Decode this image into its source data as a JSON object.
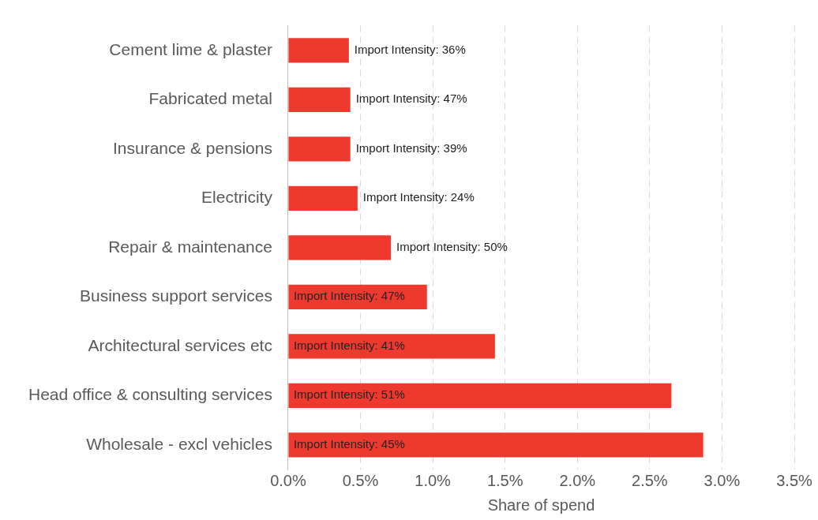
{
  "chart_data": {
    "type": "bar",
    "orientation": "horizontal",
    "xlabel": "Share of spend",
    "categories": [
      "Cement lime & plaster",
      "Fabricated metal",
      "Insurance & pensions",
      "Electricity",
      "Repair & maintenance",
      "Business support services",
      "Architectural services etc",
      "Head office & consulting services",
      "Wholesale - excl vehicles"
    ],
    "values": [
      0.42,
      0.43,
      0.43,
      0.48,
      0.71,
      0.96,
      1.43,
      2.65,
      2.87
    ],
    "annotations": [
      {
        "text": "Import Intensity: 36%",
        "x": 0.42,
        "y": "Cement lime & plaster"
      },
      {
        "text": "Import Intensity: 47%",
        "x": 0.43,
        "y": "Fabricated metal"
      },
      {
        "text": "Import Intensity: 39%",
        "x": 0.43,
        "y": "Insurance & pensions"
      },
      {
        "text": "Import Intensity: 24%",
        "x": 0.48,
        "y": "Electricity"
      },
      {
        "text": "Import Intensity: 50%",
        "x": 0.71,
        "y": "Repair & maintenance"
      },
      {
        "text": "Import Intensity: 47%",
        "x": 0,
        "y": "Business support services"
      },
      {
        "text": "Import Intensity: 41%",
        "x": 0,
        "y": "Architectural services etc"
      },
      {
        "text": "Import Intensity: 51%",
        "x": 0,
        "y": "Head office & consulting services"
      },
      {
        "text": "Import Intensity: 45%",
        "x": 0,
        "y": "Wholesale - excl vehicles"
      }
    ],
    "color": "#ee3a2e",
    "xlim": [
      0,
      3.5
    ],
    "xticks": [
      {
        "value": 0,
        "label": "0.0%"
      },
      {
        "value": 0.5,
        "label": "0.5%"
      },
      {
        "value": 1,
        "label": "1.0%"
      },
      {
        "value": 1.5,
        "label": "1.5%"
      },
      {
        "value": 2,
        "label": "2.0%"
      },
      {
        "value": 2.5,
        "label": "2.5%"
      },
      {
        "value": 3,
        "label": "3.0%"
      },
      {
        "value": 3.5,
        "label": "3.5%"
      }
    ],
    "grid": "x",
    "legend": false
  }
}
